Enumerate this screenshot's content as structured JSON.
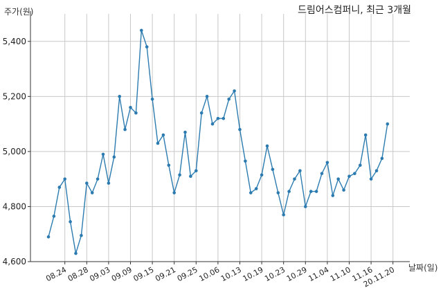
{
  "chart_data": {
    "type": "line",
    "title": "드림어스컴퍼니, 최근 3개월",
    "ylabel": "주가(원)",
    "xlabel": "날짜(일)",
    "ylim": [
      4600,
      5500
    ],
    "y_ticks": [
      4600,
      4800,
      5000,
      5200,
      5400
    ],
    "y_tick_labels": [
      "4,600",
      "4,800",
      "5,000",
      "5,200",
      "5,400"
    ],
    "x_tick_labels": [
      "08.24",
      "08.28",
      "09.03",
      "09.09",
      "09.15",
      "09.21",
      "09.25",
      "10.06",
      "10.13",
      "10.19",
      "10.23",
      "10.29",
      "11.04",
      "11.10",
      "11.16",
      "20.11.20"
    ],
    "x_tick_index": [
      3,
      7,
      11,
      15,
      19,
      23,
      27,
      31,
      35,
      39,
      43,
      47,
      51,
      55,
      59,
      63
    ],
    "grid": true,
    "color": "#2b7bb0",
    "series": [
      {
        "values": [
          4690,
          4765,
          4870,
          4900,
          4745,
          4630,
          4695,
          4885,
          4850,
          4900,
          4990,
          4885,
          4980,
          5200,
          5080,
          5160,
          5140,
          5440,
          5380,
          5190,
          5030,
          5060,
          4950,
          4850,
          4915,
          5070,
          4910,
          4930,
          5140,
          5200,
          5100,
          5120,
          5120,
          5190,
          5220,
          5080,
          4965,
          4850,
          4865,
          4915,
          5020,
          4935,
          4850,
          4770,
          4855,
          4900,
          4930,
          4800,
          4855,
          4855,
          4920,
          4960,
          4840,
          4900,
          4860,
          4910,
          4920,
          4950,
          5060,
          4900,
          4930,
          4975,
          5100
        ]
      }
    ]
  }
}
